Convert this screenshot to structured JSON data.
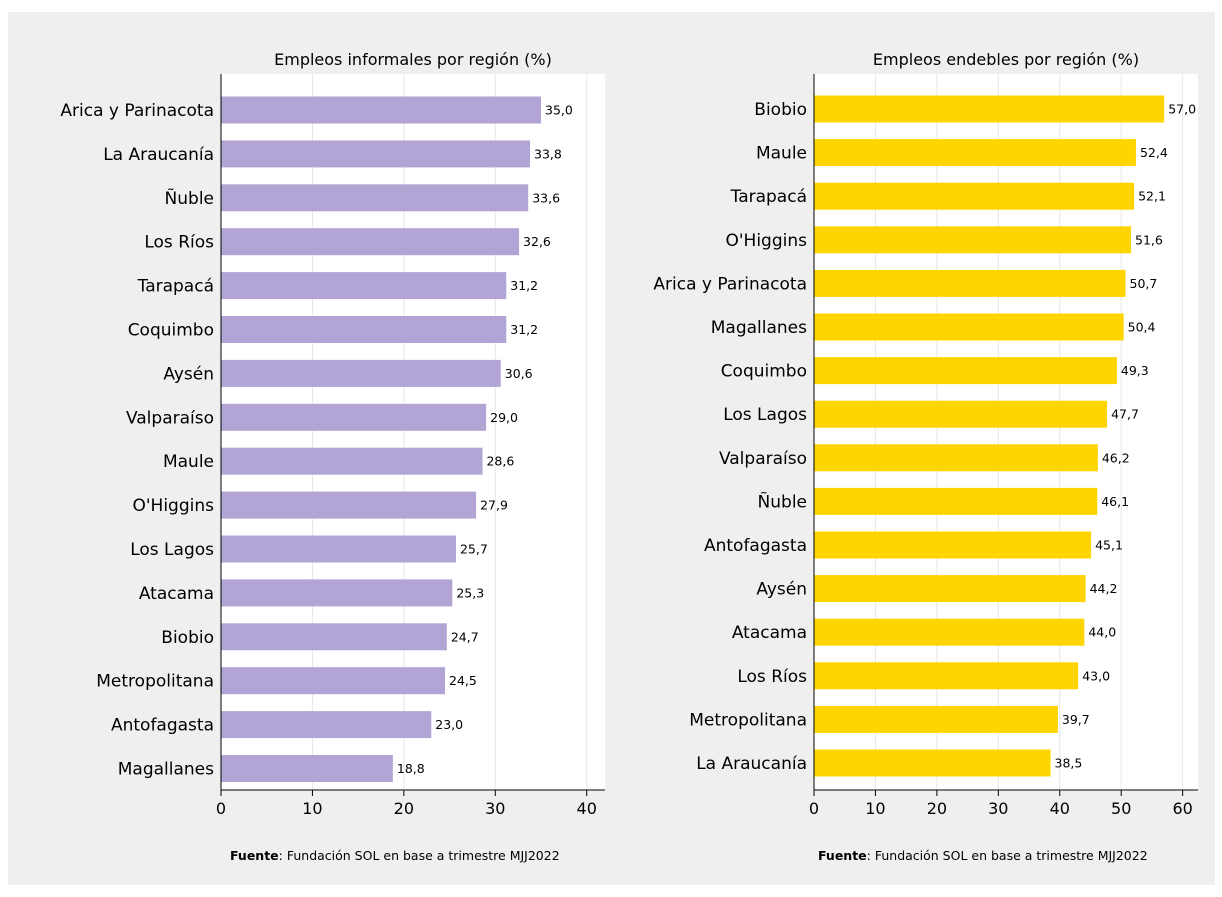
{
  "source": {
    "label": "Fuente",
    "text": ": Fundación SOL en base a trimestre MJJ2022"
  },
  "chart_data": [
    {
      "type": "bar",
      "orientation": "horizontal",
      "title": "Empleos informales por región (%)",
      "color": "#b2a5d6",
      "xlim": [
        0,
        42
      ],
      "xticks": [
        0,
        10,
        20,
        30,
        40
      ],
      "categories": [
        "Arica y Parinacota",
        "La Araucanía",
        "Ñuble",
        "Los Ríos",
        "Tarapacá",
        "Coquimbo",
        "Aysén",
        "Valparaíso",
        "Maule",
        "O'Higgins",
        "Los Lagos",
        "Atacama",
        "Biobio",
        "Metropolitana",
        "Antofagasta",
        "Magallanes"
      ],
      "values": [
        35.0,
        33.8,
        33.6,
        32.6,
        31.2,
        31.2,
        30.6,
        29.0,
        28.6,
        27.9,
        25.7,
        25.3,
        24.7,
        24.5,
        23.0,
        18.8
      ],
      "value_labels": [
        "35,0",
        "33,8",
        "33,6",
        "32,6",
        "31,2",
        "31,2",
        "30,6",
        "29,0",
        "28,6",
        "27,9",
        "25,7",
        "25,3",
        "24,7",
        "24,5",
        "23,0",
        "18,8"
      ],
      "grid": true
    },
    {
      "type": "bar",
      "orientation": "horizontal",
      "title": "Empleos endebles por región (%)",
      "color": "#ffd500",
      "xlim": [
        0,
        62.5
      ],
      "xticks": [
        0,
        10,
        20,
        30,
        40,
        50,
        60
      ],
      "categories": [
        "Biobio",
        "Maule",
        "Tarapacá",
        "O'Higgins",
        "Arica y Parinacota",
        "Magallanes",
        "Coquimbo",
        "Los Lagos",
        "Valparaíso",
        "Ñuble",
        "Antofagasta",
        "Aysén",
        "Atacama",
        "Los Ríos",
        "Metropolitana",
        "La Araucanía"
      ],
      "values": [
        57.0,
        52.4,
        52.1,
        51.6,
        50.7,
        50.4,
        49.3,
        47.7,
        46.2,
        46.1,
        45.1,
        44.2,
        44.0,
        43.0,
        39.7,
        38.5
      ],
      "value_labels": [
        "57,0",
        "52,4",
        "52,1",
        "51,6",
        "50,7",
        "50,4",
        "49,3",
        "47,7",
        "46,2",
        "46,1",
        "45,1",
        "44,2",
        "44,0",
        "43,0",
        "39,7",
        "38,5"
      ],
      "grid": true
    }
  ]
}
